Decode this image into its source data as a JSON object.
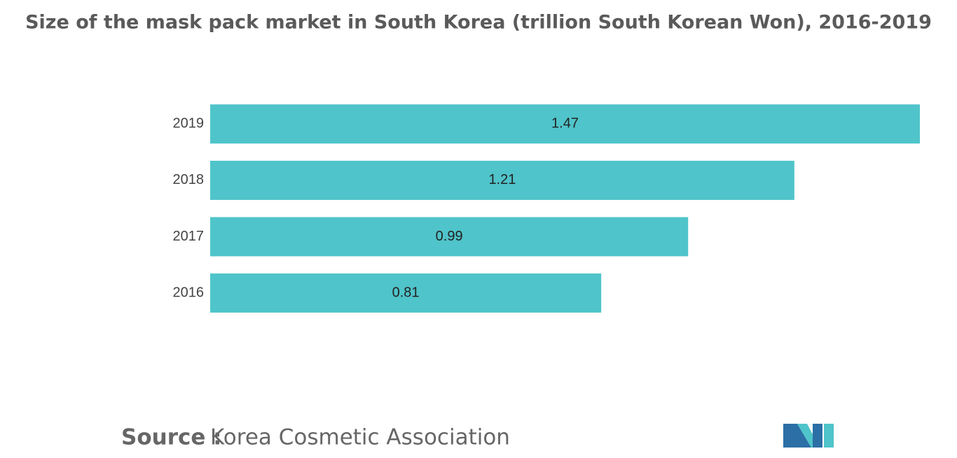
{
  "chart_data": {
    "type": "bar",
    "orientation": "horizontal",
    "title": "Size of the mask pack market in South Korea (trillion South Korean Won), 2016-2019",
    "categories": [
      "2019",
      "2018",
      "2017",
      "2016"
    ],
    "values": [
      1.47,
      1.21,
      0.99,
      0.81
    ],
    "color": "#4fc4ca"
  },
  "source": {
    "label": "Source :",
    "text": "Korea Cosmetic Association"
  }
}
